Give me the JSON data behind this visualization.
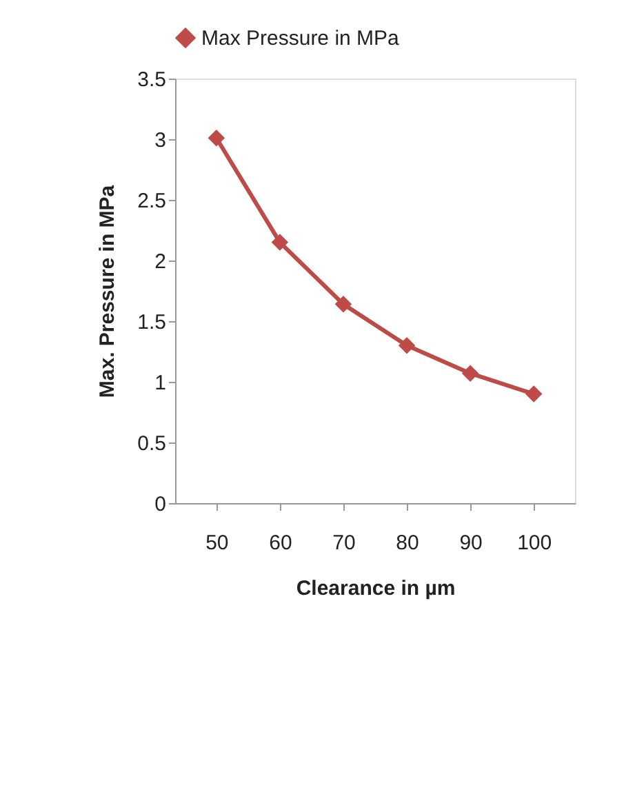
{
  "chart_data": {
    "type": "line",
    "xlabel": "Clearance in µm",
    "ylabel": "Max. Pressure in MPa",
    "categories": [
      "50",
      "60",
      "70",
      "80",
      "90",
      "100"
    ],
    "series": [
      {
        "name": "Max Pressure in MPa",
        "color": "#be4b48",
        "values": [
          3.01,
          2.15,
          1.64,
          1.3,
          1.07,
          0.9
        ]
      }
    ],
    "ylim": [
      0,
      3.5
    ],
    "yticks": [
      0,
      0.5,
      1,
      1.5,
      2,
      2.5,
      3,
      3.5
    ],
    "grid": false,
    "legend": "top",
    "marker": "diamond",
    "line_style": "solid"
  }
}
